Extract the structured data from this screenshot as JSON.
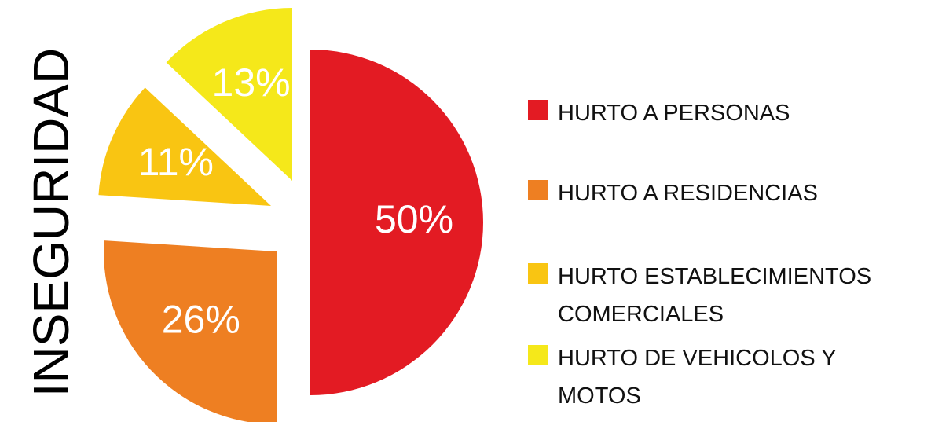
{
  "chart_data": {
    "type": "pie",
    "title": "INSEGURIDAD",
    "categories": [
      "HURTO A PERSONAS",
      "HURTO A RESIDENCIAS",
      "HURTO ESTABLECIMIENTOS COMERCIALES",
      "HURTO DE VEHICOLOS Y MOTOS"
    ],
    "values": [
      50,
      26,
      11,
      13
    ],
    "value_labels": [
      "50%",
      "26%",
      "11%",
      "13%"
    ],
    "colors": [
      "#e31b23",
      "#ee7f22",
      "#f9c512",
      "#f5e81a"
    ],
    "legend": "right"
  }
}
